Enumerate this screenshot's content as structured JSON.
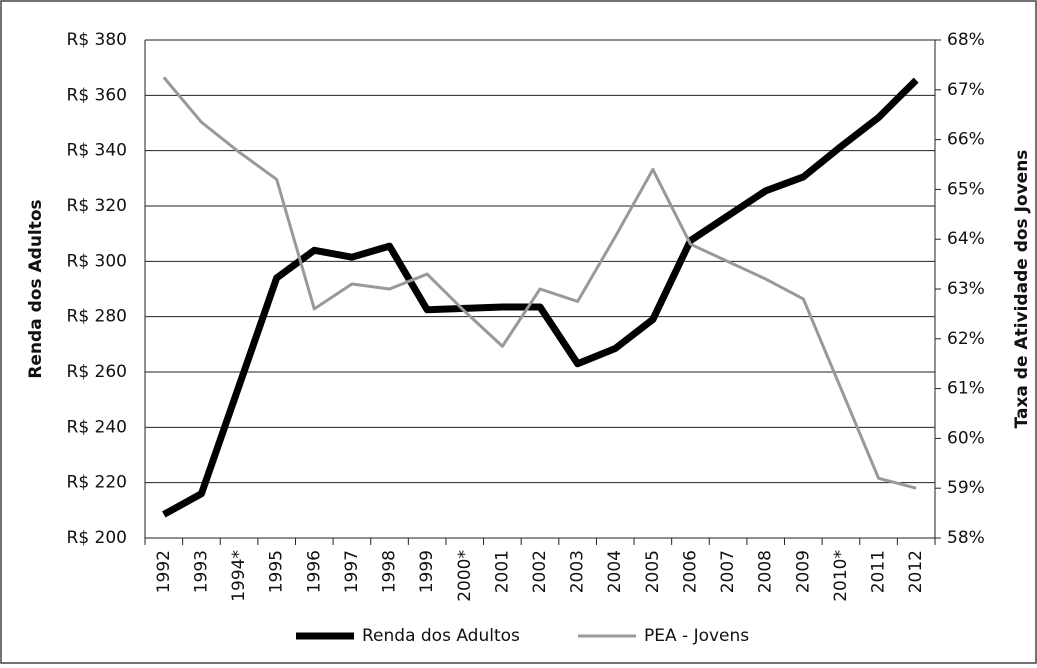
{
  "chart_data": {
    "type": "line",
    "categories": [
      "1992",
      "1993",
      "1994*",
      "1995",
      "1996",
      "1997",
      "1998",
      "1999",
      "2000*",
      "2001",
      "2002",
      "2003",
      "2004",
      "2005",
      "2006",
      "2007",
      "2008",
      "2009",
      "2010*",
      "2011",
      "2012"
    ],
    "series": [
      {
        "name": "Renda dos Adultos",
        "color": "#000000",
        "values": [
          208.5,
          216,
          255,
          294,
          304,
          301.5,
          305.5,
          282.5,
          283,
          283.5,
          283.5,
          263,
          268.5,
          279,
          307.5,
          316.5,
          325.5,
          330.5,
          341.5,
          352,
          365.5
        ]
      },
      {
        "name": "PEA - Jovens",
        "color": "#999999",
        "axis": "y2",
        "values": [
          67.25,
          66.35,
          65.75,
          65.2,
          62.6,
          63.1,
          63.0,
          63.3,
          62.55,
          61.85,
          63.0,
          62.75,
          64.05,
          65.4,
          63.9,
          63.55,
          63.2,
          62.8,
          61.0,
          59.2,
          59.0
        ]
      }
    ],
    "ylabel": "Renda dos Adultos",
    "y2label": "Taxa de Atividade dos Jovens",
    "ylim": [
      200,
      380
    ],
    "yticks": [
      {
        "value": 200,
        "label": "R$ 200"
      },
      {
        "value": 220,
        "label": "R$ 220"
      },
      {
        "value": 240,
        "label": "R$ 240"
      },
      {
        "value": 260,
        "label": "R$ 260"
      },
      {
        "value": 280,
        "label": "R$ 280"
      },
      {
        "value": 300,
        "label": "R$ 300"
      },
      {
        "value": 320,
        "label": "R$ 320"
      },
      {
        "value": 340,
        "label": "R$ 340"
      },
      {
        "value": 360,
        "label": "R$ 360"
      },
      {
        "value": 380,
        "label": "R$ 380"
      }
    ],
    "y2lim": [
      58,
      68
    ],
    "y2ticks": [
      {
        "value": 58,
        "label": "58%"
      },
      {
        "value": 59,
        "label": "59%"
      },
      {
        "value": 60,
        "label": "60%"
      },
      {
        "value": 61,
        "label": "61%"
      },
      {
        "value": 62,
        "label": "62%"
      },
      {
        "value": 63,
        "label": "63%"
      },
      {
        "value": 64,
        "label": "64%"
      },
      {
        "value": 65,
        "label": "65%"
      },
      {
        "value": 66,
        "label": "66%"
      },
      {
        "value": 67,
        "label": "67%"
      },
      {
        "value": 68,
        "label": "68%"
      }
    ],
    "grid": true,
    "legend": "bottom"
  }
}
